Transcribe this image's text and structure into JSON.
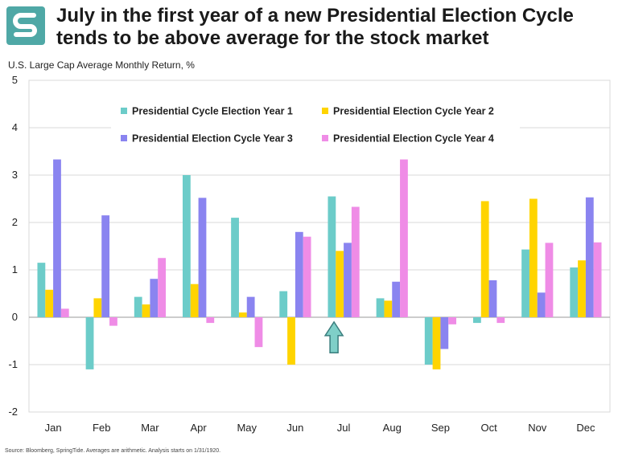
{
  "header": {
    "title": "July in the first year of a new Presidential Election Cycle tends to be above average for the stock market",
    "logo_icon": "springtide-logo-icon"
  },
  "footer": {
    "source": "Source: Bloomberg, SpringTide. Averages are arithmetic. Analysis starts on 1/31/1920."
  },
  "colors": {
    "logo_teal": "#4fa8a6",
    "year1": "#6cccc9",
    "year2": "#ffd400",
    "year3": "#8a84f0",
    "year4": "#ef8ce6",
    "arrow_fill": "#7fcfc8",
    "arrow_stroke": "#3a7d7d",
    "grid": "#d9d9d9"
  },
  "chart_data": {
    "type": "bar",
    "title": "",
    "ylabel": "U.S. Large Cap Average Monthly Return, %",
    "xlabel": "",
    "ylim": [
      -2,
      5
    ],
    "yticks": [
      -2,
      -1,
      0,
      1,
      2,
      3,
      4,
      5
    ],
    "grid": true,
    "legend_position": "top",
    "categories": [
      "Jan",
      "Feb",
      "Mar",
      "Apr",
      "May",
      "Jun",
      "Jul",
      "Aug",
      "Sep",
      "Oct",
      "Nov",
      "Dec"
    ],
    "series": [
      {
        "name": "Presidential Cycle Election Year 1",
        "color": "#6cccc9",
        "values": [
          1.15,
          -1.1,
          0.43,
          3.0,
          2.1,
          0.55,
          2.55,
          0.4,
          -1.0,
          -0.12,
          1.43,
          1.05
        ]
      },
      {
        "name": "Presidential Election Cycle Year 2",
        "color": "#ffd400",
        "values": [
          0.58,
          0.4,
          0.27,
          0.7,
          0.1,
          -1.0,
          1.4,
          0.35,
          -1.1,
          2.45,
          2.5,
          1.2
        ]
      },
      {
        "name": "Presidential Election Cycle Year 3",
        "color": "#8a84f0",
        "values": [
          3.33,
          2.15,
          0.81,
          2.52,
          0.43,
          1.8,
          1.57,
          0.75,
          -0.67,
          0.78,
          0.52,
          2.53
        ]
      },
      {
        "name": "Presidential Election Cycle Year 4",
        "color": "#ef8ce6",
        "values": [
          0.18,
          -0.18,
          1.25,
          -0.12,
          -0.63,
          1.7,
          2.33,
          3.33,
          -0.15,
          -0.12,
          1.57,
          1.58
        ]
      }
    ],
    "annotations": [
      {
        "type": "arrow-up",
        "category": "Jul",
        "y_from": -0.75,
        "y_to": -0.1
      }
    ]
  }
}
